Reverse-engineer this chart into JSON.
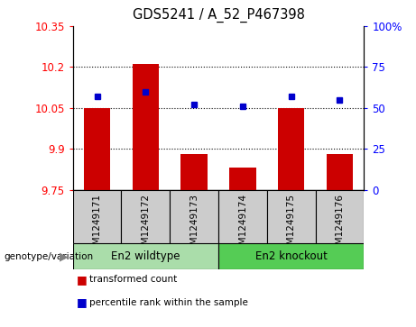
{
  "title": "GDS5241 / A_52_P467398",
  "samples": [
    "GSM1249171",
    "GSM1249172",
    "GSM1249173",
    "GSM1249174",
    "GSM1249175",
    "GSM1249176"
  ],
  "transformed_counts": [
    10.05,
    10.21,
    9.88,
    9.83,
    10.048,
    9.88
  ],
  "percentile_ranks": [
    57,
    60,
    52,
    51,
    57,
    55
  ],
  "y_min": 9.75,
  "y_max": 10.35,
  "y_ticks": [
    9.75,
    9.9,
    10.05,
    10.2,
    10.35
  ],
  "y_tick_labels": [
    "9.75",
    "9.9",
    "10.05",
    "10.2",
    "10.35"
  ],
  "right_y_ticks": [
    0,
    25,
    50,
    75,
    100
  ],
  "right_y_tick_labels": [
    "0",
    "25",
    "50",
    "75",
    "100%"
  ],
  "bar_color": "#cc0000",
  "dot_color": "#0000cc",
  "group1_label": "En2 wildtype",
  "group2_label": "En2 knockout",
  "group1_color": "#aaddaa",
  "group2_color": "#55cc55",
  "genotype_label": "genotype/variation",
  "legend_bar_label": "transformed count",
  "legend_dot_label": "percentile rank within the sample",
  "sample_bg_color": "#cccccc",
  "plot_bg_color": "#ffffff"
}
